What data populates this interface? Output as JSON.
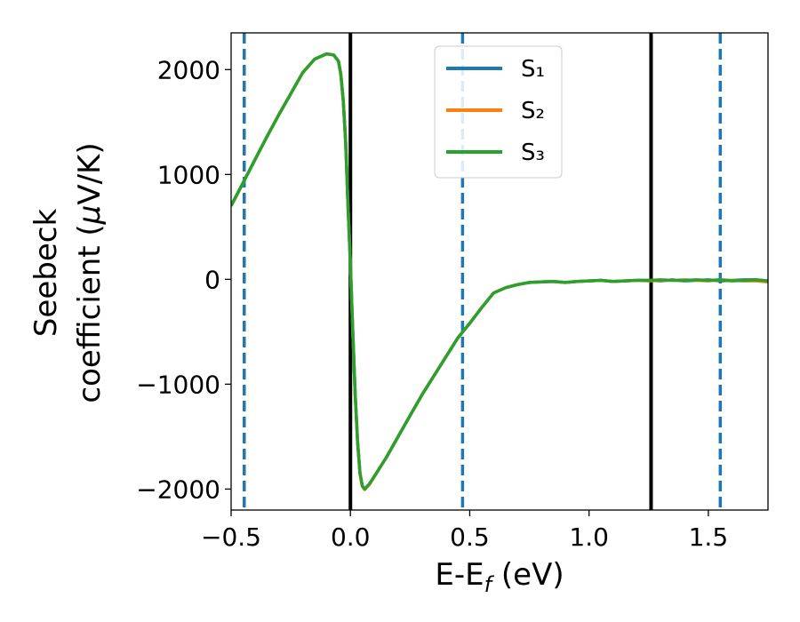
{
  "chart_data": {
    "type": "line",
    "xlabel": "E-E_f (eV)",
    "ylabel_line1": "Seebeck",
    "ylabel_line2": "coefficient  (μV/K)",
    "xlim": [
      -0.5,
      1.75
    ],
    "ylim": [
      -2200,
      2350
    ],
    "x_ticks": [
      -0.5,
      0.0,
      0.5,
      1.0,
      1.5
    ],
    "x_tick_labels": [
      "−0.5",
      "0.0",
      "0.5",
      "1.0",
      "1.5"
    ],
    "y_ticks": [
      -2000,
      -1000,
      0,
      1000,
      2000
    ],
    "y_tick_labels": [
      "−2000",
      "−1000",
      "0",
      "1000",
      "2000"
    ],
    "grid": false,
    "legend_position": "top-center",
    "vertical_lines": [
      {
        "x": -0.445,
        "style": "dashed",
        "color": "#1f77b4"
      },
      {
        "x": 0.0,
        "style": "solid",
        "color": "#000000"
      },
      {
        "x": 0.47,
        "style": "dashed",
        "color": "#1f77b4"
      },
      {
        "x": 1.26,
        "style": "solid",
        "color": "#000000"
      },
      {
        "x": 1.55,
        "style": "dashed",
        "color": "#1f77b4"
      }
    ],
    "x": [
      -0.5,
      -0.45,
      -0.4,
      -0.35,
      -0.3,
      -0.25,
      -0.2,
      -0.15,
      -0.1,
      -0.07,
      -0.05,
      -0.04,
      -0.03,
      -0.02,
      -0.01,
      0.0,
      0.01,
      0.02,
      0.03,
      0.04,
      0.05,
      0.06,
      0.08,
      0.1,
      0.15,
      0.2,
      0.25,
      0.3,
      0.35,
      0.4,
      0.45,
      0.5,
      0.55,
      0.6,
      0.65,
      0.7,
      0.75,
      0.8,
      0.85,
      0.9,
      0.95,
      1.0,
      1.05,
      1.1,
      1.15,
      1.2,
      1.25,
      1.3,
      1.35,
      1.4,
      1.45,
      1.5,
      1.55,
      1.6,
      1.65,
      1.7,
      1.75
    ],
    "series": [
      {
        "name": "S₁",
        "color": "#1f77b4",
        "values": [
          700,
          920,
          1140,
          1360,
          1570,
          1770,
          1970,
          2100,
          2150,
          2140,
          2080,
          1950,
          1700,
          1300,
          700,
          150,
          -500,
          -1100,
          -1550,
          -1850,
          -1970,
          -2000,
          -1950,
          -1880,
          -1700,
          -1500,
          -1300,
          -1100,
          -920,
          -740,
          -560,
          -420,
          -270,
          -130,
          -80,
          -50,
          -30,
          -25,
          -20,
          -30,
          -20,
          -15,
          -10,
          -20,
          -15,
          -10,
          -10,
          -15,
          -5,
          -15,
          -10,
          -5,
          -15,
          -10,
          -5,
          -5,
          -15
        ]
      },
      {
        "name": "S₂",
        "color": "#ff7f0e",
        "values": [
          700,
          920,
          1140,
          1360,
          1570,
          1770,
          1970,
          2100,
          2150,
          2140,
          2080,
          1950,
          1700,
          1300,
          700,
          150,
          -500,
          -1100,
          -1550,
          -1850,
          -1975,
          -2005,
          -1955,
          -1880,
          -1700,
          -1500,
          -1300,
          -1100,
          -920,
          -740,
          -560,
          -420,
          -270,
          -130,
          -80,
          -50,
          -30,
          -25,
          -20,
          -30,
          -20,
          -15,
          -10,
          -20,
          -15,
          -10,
          -15,
          -10,
          -10,
          -5,
          -10,
          -15,
          -5,
          -10,
          -15,
          -15,
          -25
        ]
      },
      {
        "name": "S₃",
        "color": "#2ca02c",
        "values": [
          700,
          920,
          1140,
          1360,
          1570,
          1770,
          1970,
          2100,
          2150,
          2140,
          2080,
          1950,
          1700,
          1300,
          700,
          150,
          -500,
          -1100,
          -1550,
          -1850,
          -1970,
          -2000,
          -1950,
          -1880,
          -1700,
          -1500,
          -1300,
          -1100,
          -920,
          -740,
          -560,
          -420,
          -270,
          -130,
          -80,
          -50,
          -30,
          -25,
          -20,
          -30,
          -20,
          -15,
          -10,
          -20,
          -15,
          -10,
          -10,
          -5,
          -10,
          -10,
          -5,
          -10,
          -5,
          -15,
          -10,
          -5,
          -15
        ]
      }
    ]
  }
}
